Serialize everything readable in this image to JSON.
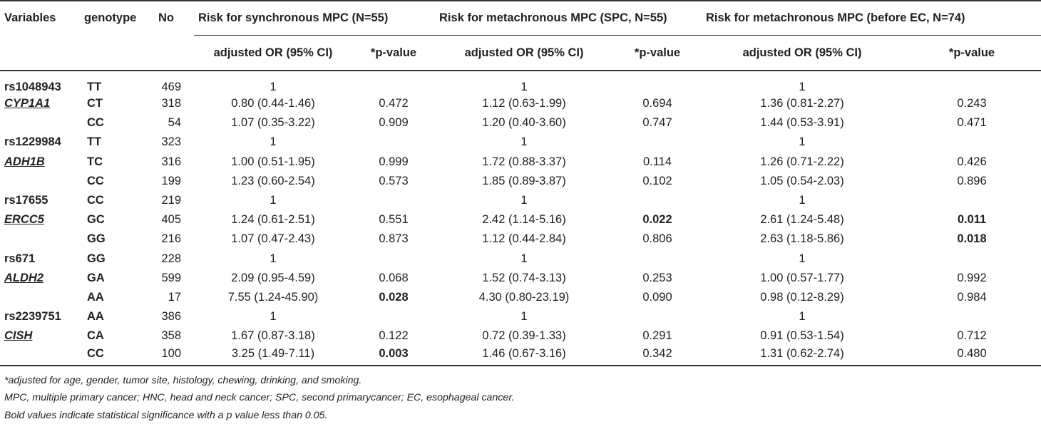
{
  "header": {
    "variables": "Variables",
    "genotype": "genotype",
    "no": "No",
    "group1": "Risk for synchronous MPC (N=55)",
    "group2": "Risk for metachronous MPC (SPC, N=55)",
    "group3": "Risk for metachronous MPC (before EC, N=74)",
    "or_label": "adjusted OR (95% CI)",
    "p_label": "*p-value"
  },
  "rows": [
    {
      "var": "rs1048943",
      "geno": "TT",
      "no": "469",
      "or1": "1",
      "p1": "",
      "or2": "1",
      "p2": "",
      "or3": "1",
      "p3": ""
    },
    {
      "var": "CYP1A1",
      "geno": "CT",
      "no": "318",
      "or1": "0.80 (0.44-1.46)",
      "p1": "0.472",
      "or2": "1.12 (0.63-1.99)",
      "p2": "0.694",
      "or3": "1.36 (0.81-2.27)",
      "p3": "0.243"
    },
    {
      "var": "",
      "geno": "CC",
      "no": "54",
      "or1": "1.07 (0.35-3.22)",
      "p1": "0.909",
      "or2": "1.20 (0.40-3.60)",
      "p2": "0.747",
      "or3": "1.44 (0.53-3.91)",
      "p3": "0.471"
    },
    {
      "var": "rs1229984",
      "geno": "TT",
      "no": "323",
      "or1": "1",
      "p1": "",
      "or2": "1",
      "p2": "",
      "or3": "1",
      "p3": ""
    },
    {
      "var": "ADH1B",
      "geno": "TC",
      "no": "316",
      "or1": "1.00 (0.51-1.95)",
      "p1": "0.999",
      "or2": "1.72 (0.88-3.37)",
      "p2": "0.114",
      "or3": "1.26 (0.71-2.22)",
      "p3": "0.426"
    },
    {
      "var": "",
      "geno": "CC",
      "no": "199",
      "or1": "1.23 (0.60-2.54)",
      "p1": "0.573",
      "or2": "1.85 (0.89-3.87)",
      "p2": "0.102",
      "or3": "1.05 (0.54-2.03)",
      "p3": "0.896"
    },
    {
      "var": "rs17655",
      "geno": "CC",
      "no": "219",
      "or1": "1",
      "p1": "",
      "or2": "1",
      "p2": "",
      "or3": "1",
      "p3": ""
    },
    {
      "var": "ERCC5",
      "geno": "GC",
      "no": "405",
      "or1": "1.24 (0.61-2.51)",
      "p1": "0.551",
      "or2": "2.42 (1.14-5.16)",
      "p2": "0.022",
      "or3": "2.61 (1.24-5.48)",
      "p3": "0.011"
    },
    {
      "var": "",
      "geno": "GG",
      "no": "216",
      "or1": "1.07 (0.47-2.43)",
      "p1": "0.873",
      "or2": "1.12 (0.44-2.84)",
      "p2": "0.806",
      "or3": "2.63 (1.18-5.86)",
      "p3": "0.018"
    },
    {
      "var": "rs671",
      "geno": "GG",
      "no": "228",
      "or1": "1",
      "p1": "",
      "or2": "1",
      "p2": "",
      "or3": "1",
      "p3": ""
    },
    {
      "var": "ALDH2",
      "geno": "GA",
      "no": "599",
      "or1": "2.09 (0.95-4.59)",
      "p1": "0.068",
      "or2": "1.52 (0.74-3.13)",
      "p2": "0.253",
      "or3": "1.00 (0.57-1.77)",
      "p3": "0.992"
    },
    {
      "var": "",
      "geno": "AA",
      "no": "17",
      "or1": "7.55 (1.24-45.90)",
      "p1": "0.028",
      "or2": "4.30 (0.80-23.19)",
      "p2": "0.090",
      "or3": "0.98 (0.12-8.29)",
      "p3": "0.984"
    },
    {
      "var": "rs2239751",
      "geno": "AA",
      "no": "386",
      "or1": "1",
      "p1": "",
      "or2": "1",
      "p2": "",
      "or3": "1",
      "p3": ""
    },
    {
      "var": "CISH",
      "geno": "CA",
      "no": "358",
      "or1": "1.67 (0.87-3.18)",
      "p1": "0.122",
      "or2": "0.72 (0.39-1.33)",
      "p2": "0.291",
      "or3": "0.91 (0.53-1.54)",
      "p3": "0.712"
    },
    {
      "var": "",
      "geno": "CC",
      "no": "100",
      "or1": "3.25 (1.49-7.11)",
      "p1": "0.003",
      "or2": "1.46 (0.67-3.16)",
      "p2": "0.342",
      "or3": "1.31 (0.62-2.74)",
      "p3": "0.480"
    }
  ],
  "notes": [
    "*adjusted for age, gender, tumor site, histology, chewing, drinking, and smoking.",
    "MPC, multiple primary cancer; HNC, head and neck cancer; SPC, second primarycancer; EC, esophageal cancer.",
    "Bold values indicate statistical significance with a p value less than 0.05."
  ]
}
